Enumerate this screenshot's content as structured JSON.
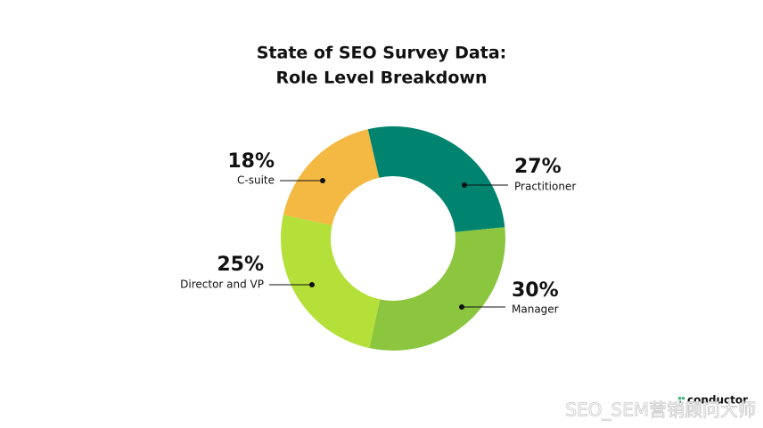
{
  "chart_data": {
    "type": "donut",
    "title": [
      "State of SEO Survey Data:",
      "Role Level Breakdown"
    ],
    "categories": [
      "Practitioner",
      "Manager",
      "Director and VP",
      "C-suite"
    ],
    "values": [
      27,
      30,
      25,
      18
    ],
    "value_labels": [
      "27%",
      "30%",
      "25%",
      "18%"
    ],
    "colors": [
      "#00846f",
      "#8cc63f",
      "#b5e03a",
      "#f4b942"
    ]
  },
  "brand": "conductor",
  "watermark": "SEO_SEM营销顾问大师"
}
